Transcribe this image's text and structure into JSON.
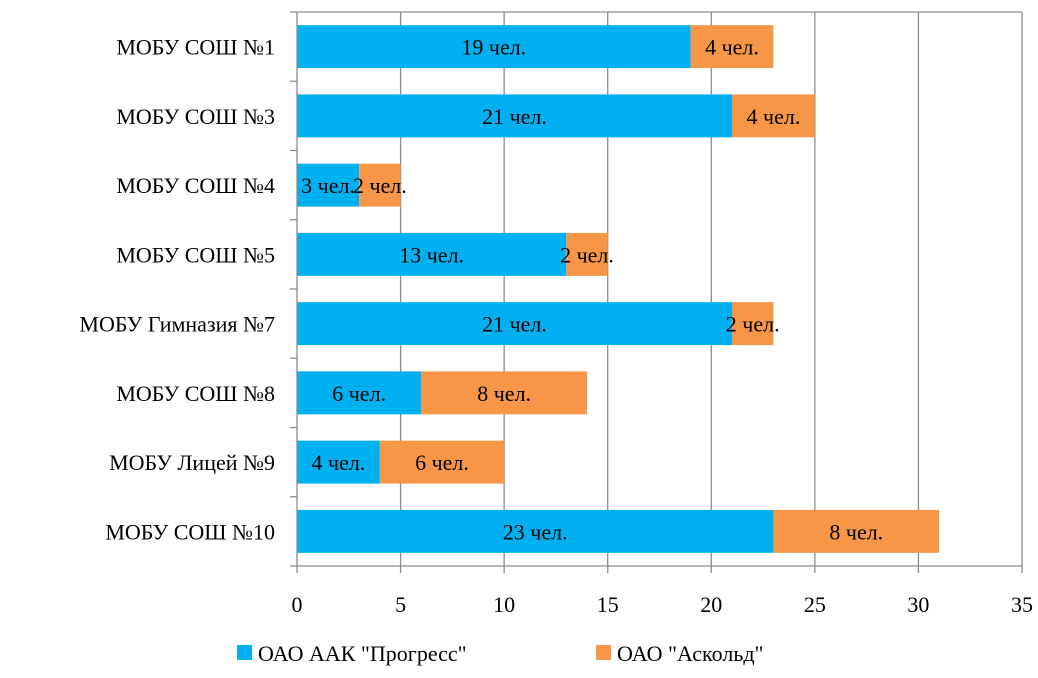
{
  "chart_data": {
    "type": "bar",
    "orientation": "horizontal",
    "stacked": true,
    "title": "",
    "xlabel": "",
    "ylabel": "",
    "categories": [
      "МОБУ СОШ №1",
      "МОБУ СОШ №3",
      "МОБУ СОШ №4",
      "МОБУ СОШ №5",
      "МОБУ Гимназия №7",
      "МОБУ СОШ №8",
      "МОБУ Лицей №9",
      "МОБУ СОШ №10"
    ],
    "series": [
      {
        "name": "ОАО ААК \"Прогресс\"",
        "color": "#00B0F0",
        "values": [
          19,
          21,
          3,
          13,
          21,
          6,
          4,
          23
        ],
        "labels": [
          "19 чел.",
          "21 чел.",
          "3 чел.",
          "13 чел.",
          "21 чел.",
          "6 чел.",
          "4 чел.",
          "23 чел."
        ]
      },
      {
        "name": "ОАО \"Аскольд\"",
        "color": "#F79646",
        "values": [
          4,
          4,
          2,
          2,
          2,
          8,
          6,
          8
        ],
        "labels": [
          "4 чел.",
          "4 чел.",
          "2 чел.",
          "2 чел.",
          "2 чел.",
          "8 чел.",
          "6 чел.",
          "8 чел."
        ]
      }
    ],
    "xlim": [
      0,
      35
    ],
    "xticks": [
      "0",
      "5",
      "10",
      "15",
      "20",
      "25",
      "30",
      "35"
    ],
    "grid": true,
    "legend_position": "bottom"
  }
}
